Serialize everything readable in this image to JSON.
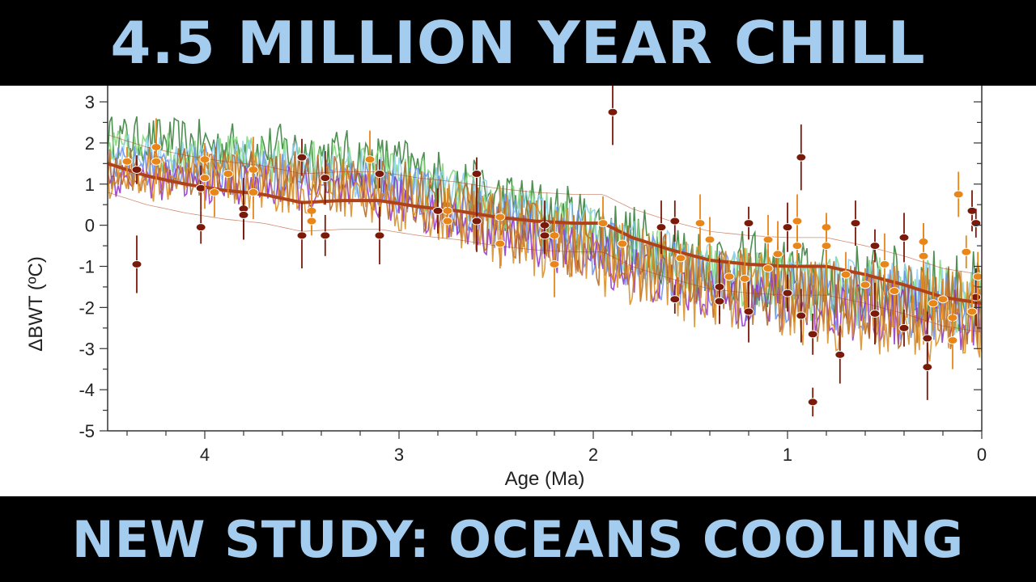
{
  "header": {
    "title": "4.5 MILLION YEAR CHILL"
  },
  "footer": {
    "title": "NEW STUDY: OCEANS COOLING"
  },
  "colors": {
    "banner_bg": "#000000",
    "banner_text": "#a3ccee",
    "smooth_trend": "#b0421a",
    "point_dark": "#7a1a0a",
    "point_orange": "#e8861a",
    "series_colors": [
      "#2e7d32",
      "#7fd67a",
      "#8fd0f0",
      "#6a8ef0",
      "#8e2fc8",
      "#b5651d",
      "#d98a1f"
    ]
  },
  "chart_data": {
    "type": "line",
    "xlabel": "Age (Ma)",
    "ylabel": "ΔBWT (ºC)",
    "xlim": [
      4.5,
      0
    ],
    "ylim": [
      -5,
      3
    ],
    "x_ticks": [
      "4",
      "3",
      "2",
      "1",
      "0"
    ],
    "y_ticks": [
      "3",
      "2",
      "1",
      "0",
      "-1",
      "-2",
      "-3",
      "-4",
      "-5"
    ],
    "grid": false,
    "legend": "none",
    "smooth_trend": {
      "x": [
        4.5,
        4.3,
        4.1,
        3.9,
        3.7,
        3.5,
        3.3,
        3.1,
        2.9,
        2.7,
        2.5,
        2.3,
        2.1,
        1.95,
        1.8,
        1.6,
        1.4,
        1.2,
        1.0,
        0.8,
        0.6,
        0.4,
        0.2,
        0.0
      ],
      "y": [
        1.5,
        1.2,
        1.0,
        0.85,
        0.75,
        0.55,
        0.6,
        0.6,
        0.45,
        0.35,
        0.2,
        0.1,
        0.05,
        0.05,
        -0.3,
        -0.6,
        -0.85,
        -0.95,
        -1.0,
        -1.0,
        -1.2,
        -1.45,
        -1.75,
        -1.9
      ]
    },
    "series_trend": {
      "x": [
        4.5,
        3.5,
        3.0,
        2.5,
        2.0,
        1.5,
        1.0,
        0.5,
        0.0
      ],
      "y": [
        1.6,
        1.3,
        1.0,
        0.2,
        -0.4,
        -1.2,
        -1.6,
        -1.8,
        -2.0
      ]
    },
    "points_dark": [
      {
        "x": 4.35,
        "y": 1.35
      },
      {
        "x": 4.35,
        "y": -0.95
      },
      {
        "x": 4.02,
        "y": 0.9
      },
      {
        "x": 4.02,
        "y": -0.05
      },
      {
        "x": 3.8,
        "y": 0.4
      },
      {
        "x": 3.8,
        "y": 0.25
      },
      {
        "x": 3.5,
        "y": 1.65
      },
      {
        "x": 3.5,
        "y": -0.25
      },
      {
        "x": 3.38,
        "y": 1.15
      },
      {
        "x": 3.38,
        "y": -0.25
      },
      {
        "x": 3.1,
        "y": 1.25
      },
      {
        "x": 3.1,
        "y": -0.25
      },
      {
        "x": 2.8,
        "y": 0.35
      },
      {
        "x": 2.6,
        "y": 1.25
      },
      {
        "x": 2.6,
        "y": 0.1
      },
      {
        "x": 2.25,
        "y": 0.0
      },
      {
        "x": 2.25,
        "y": -0.25
      },
      {
        "x": 1.9,
        "y": 2.75
      },
      {
        "x": 1.65,
        "y": -0.05
      },
      {
        "x": 1.58,
        "y": 0.1
      },
      {
        "x": 1.58,
        "y": -1.8
      },
      {
        "x": 1.35,
        "y": -1.5
      },
      {
        "x": 1.35,
        "y": -1.85
      },
      {
        "x": 1.2,
        "y": 0.05
      },
      {
        "x": 1.2,
        "y": -2.1
      },
      {
        "x": 1.0,
        "y": -0.05
      },
      {
        "x": 1.0,
        "y": -1.65
      },
      {
        "x": 0.93,
        "y": 1.65
      },
      {
        "x": 0.93,
        "y": -2.2
      },
      {
        "x": 0.87,
        "y": -2.65
      },
      {
        "x": 0.87,
        "y": -4.3
      },
      {
        "x": 0.73,
        "y": -3.15
      },
      {
        "x": 0.65,
        "y": 0.05
      },
      {
        "x": 0.55,
        "y": -0.5
      },
      {
        "x": 0.55,
        "y": -2.15
      },
      {
        "x": 0.4,
        "y": -0.3
      },
      {
        "x": 0.4,
        "y": -2.5
      },
      {
        "x": 0.28,
        "y": -3.45
      },
      {
        "x": 0.28,
        "y": -2.75
      },
      {
        "x": 0.05,
        "y": 0.35
      },
      {
        "x": 0.03,
        "y": 0.05
      },
      {
        "x": 0.03,
        "y": -1.75
      }
    ],
    "points_orange": [
      {
        "x": 4.4,
        "y": 1.55
      },
      {
        "x": 4.25,
        "y": 1.9
      },
      {
        "x": 4.25,
        "y": 1.55
      },
      {
        "x": 4.0,
        "y": 1.6
      },
      {
        "x": 4.0,
        "y": 1.15
      },
      {
        "x": 3.95,
        "y": 0.8
      },
      {
        "x": 3.88,
        "y": 1.25
      },
      {
        "x": 3.75,
        "y": 1.35
      },
      {
        "x": 3.75,
        "y": 0.8
      },
      {
        "x": 3.45,
        "y": 0.35
      },
      {
        "x": 3.45,
        "y": 0.1
      },
      {
        "x": 3.15,
        "y": 1.6
      },
      {
        "x": 2.75,
        "y": 0.35
      },
      {
        "x": 2.75,
        "y": 0.1
      },
      {
        "x": 2.48,
        "y": 0.2
      },
      {
        "x": 2.48,
        "y": -0.45
      },
      {
        "x": 2.2,
        "y": -0.25
      },
      {
        "x": 2.2,
        "y": -0.95
      },
      {
        "x": 1.95,
        "y": 0.05
      },
      {
        "x": 1.85,
        "y": -0.45
      },
      {
        "x": 1.55,
        "y": -0.8
      },
      {
        "x": 1.45,
        "y": 0.05
      },
      {
        "x": 1.4,
        "y": -0.35
      },
      {
        "x": 1.3,
        "y": -1.25
      },
      {
        "x": 1.22,
        "y": -1.3
      },
      {
        "x": 1.1,
        "y": -0.35
      },
      {
        "x": 1.1,
        "y": -1.05
      },
      {
        "x": 1.05,
        "y": -0.7
      },
      {
        "x": 0.95,
        "y": 0.1
      },
      {
        "x": 0.95,
        "y": -0.5
      },
      {
        "x": 0.8,
        "y": -0.05
      },
      {
        "x": 0.8,
        "y": -0.5
      },
      {
        "x": 0.7,
        "y": -1.2
      },
      {
        "x": 0.6,
        "y": -1.45
      },
      {
        "x": 0.5,
        "y": -0.95
      },
      {
        "x": 0.45,
        "y": -1.6
      },
      {
        "x": 0.3,
        "y": -0.4
      },
      {
        "x": 0.3,
        "y": -0.75
      },
      {
        "x": 0.25,
        "y": -1.9
      },
      {
        "x": 0.2,
        "y": -1.8
      },
      {
        "x": 0.15,
        "y": -2.25
      },
      {
        "x": 0.15,
        "y": -2.8
      },
      {
        "x": 0.12,
        "y": 0.75
      },
      {
        "x": 0.08,
        "y": -0.65
      },
      {
        "x": 0.05,
        "y": -2.1
      },
      {
        "x": 0.02,
        "y": -1.25
      }
    ]
  }
}
